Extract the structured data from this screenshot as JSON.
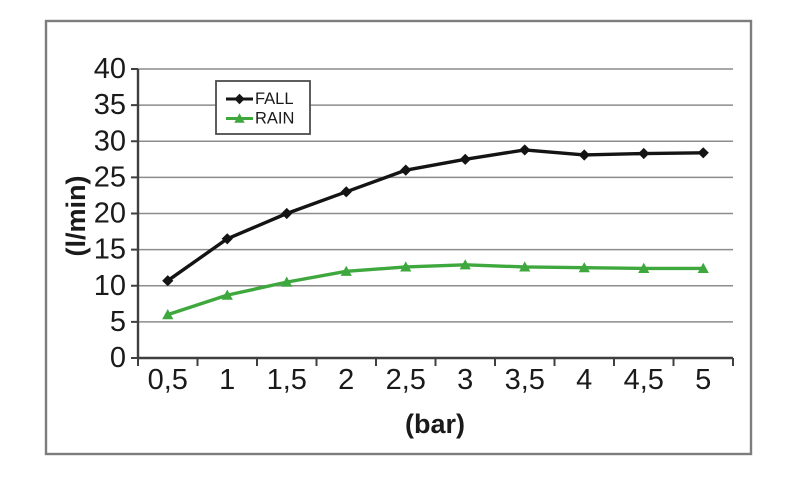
{
  "figure": {
    "background": "#ffffff",
    "frame_border_color": "#7d7d7d"
  },
  "chart_data": {
    "type": "line",
    "title": "",
    "xlabel": "(bar)",
    "ylabel": "(l/min)",
    "x": [
      0.5,
      1,
      1.5,
      2,
      2.5,
      3,
      3.5,
      4,
      4.5,
      5
    ],
    "x_tick_labels": [
      "0,5",
      "1",
      "1,5",
      "2",
      "2,5",
      "3",
      "3,5",
      "4",
      "4,5",
      "5"
    ],
    "y_ticks": [
      0,
      5,
      10,
      15,
      20,
      25,
      30,
      35,
      40
    ],
    "y_tick_labels": [
      "0",
      "5",
      "10",
      "15",
      "20",
      "25",
      "30",
      "35",
      "40"
    ],
    "ylim": [
      0,
      40
    ],
    "grid": "horizontal",
    "gridline_color": "#8c8c8c",
    "axis_color": "#3f3f3f",
    "legend": {
      "position": "top-left-inside",
      "entries": [
        "FALL",
        "RAIN"
      ]
    },
    "series": [
      {
        "name": "FALL",
        "color": "#141414",
        "marker": "diamond",
        "values": [
          10.7,
          16.5,
          20,
          23,
          26,
          27.5,
          28.8,
          28.1,
          28.3,
          28.4
        ]
      },
      {
        "name": "RAIN",
        "color": "#3ea83e",
        "marker": "triangle",
        "values": [
          6,
          8.7,
          10.5,
          12,
          12.6,
          12.9,
          12.6,
          12.5,
          12.4,
          12.4
        ]
      }
    ]
  }
}
